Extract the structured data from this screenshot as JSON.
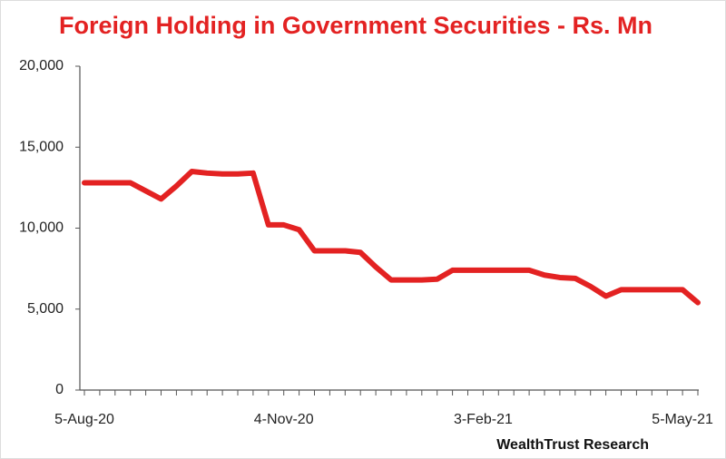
{
  "chart_data": {
    "type": "line",
    "title": "Foreign Holding in Government Securities - Rs. Mn",
    "source": "WealthTrust Research",
    "categories": [
      "5-Aug-20",
      null,
      null,
      null,
      null,
      null,
      null,
      null,
      null,
      null,
      null,
      null,
      null,
      "4-Nov-20",
      null,
      null,
      null,
      null,
      null,
      null,
      null,
      null,
      null,
      null,
      null,
      null,
      "3-Feb-21",
      null,
      null,
      null,
      null,
      null,
      null,
      null,
      null,
      null,
      null,
      null,
      null,
      "5-May-21",
      null
    ],
    "series": [
      {
        "name": "Foreign Holding",
        "color": "#e32222",
        "values": [
          12800,
          12800,
          12800,
          12800,
          12300,
          11800,
          12600,
          13500,
          13400,
          13350,
          13350,
          13400,
          10200,
          10200,
          9900,
          8600,
          8600,
          8600,
          8500,
          7600,
          6800,
          6800,
          6800,
          6850,
          7400,
          7400,
          7400,
          7400,
          7400,
          7400,
          7100,
          6950,
          6900,
          6400,
          5800,
          6200,
          6200,
          6200,
          6200,
          6200,
          5400
        ]
      }
    ],
    "ylim": [
      0,
      20000
    ],
    "yticks": [
      0,
      {
        "value": 5000,
        "label": "5,000"
      },
      {
        "value": 10000,
        "label": "10,000"
      },
      {
        "value": 15000,
        "label": "15,000"
      },
      {
        "value": 20000,
        "label": "20,000"
      }
    ],
    "grid": false
  }
}
